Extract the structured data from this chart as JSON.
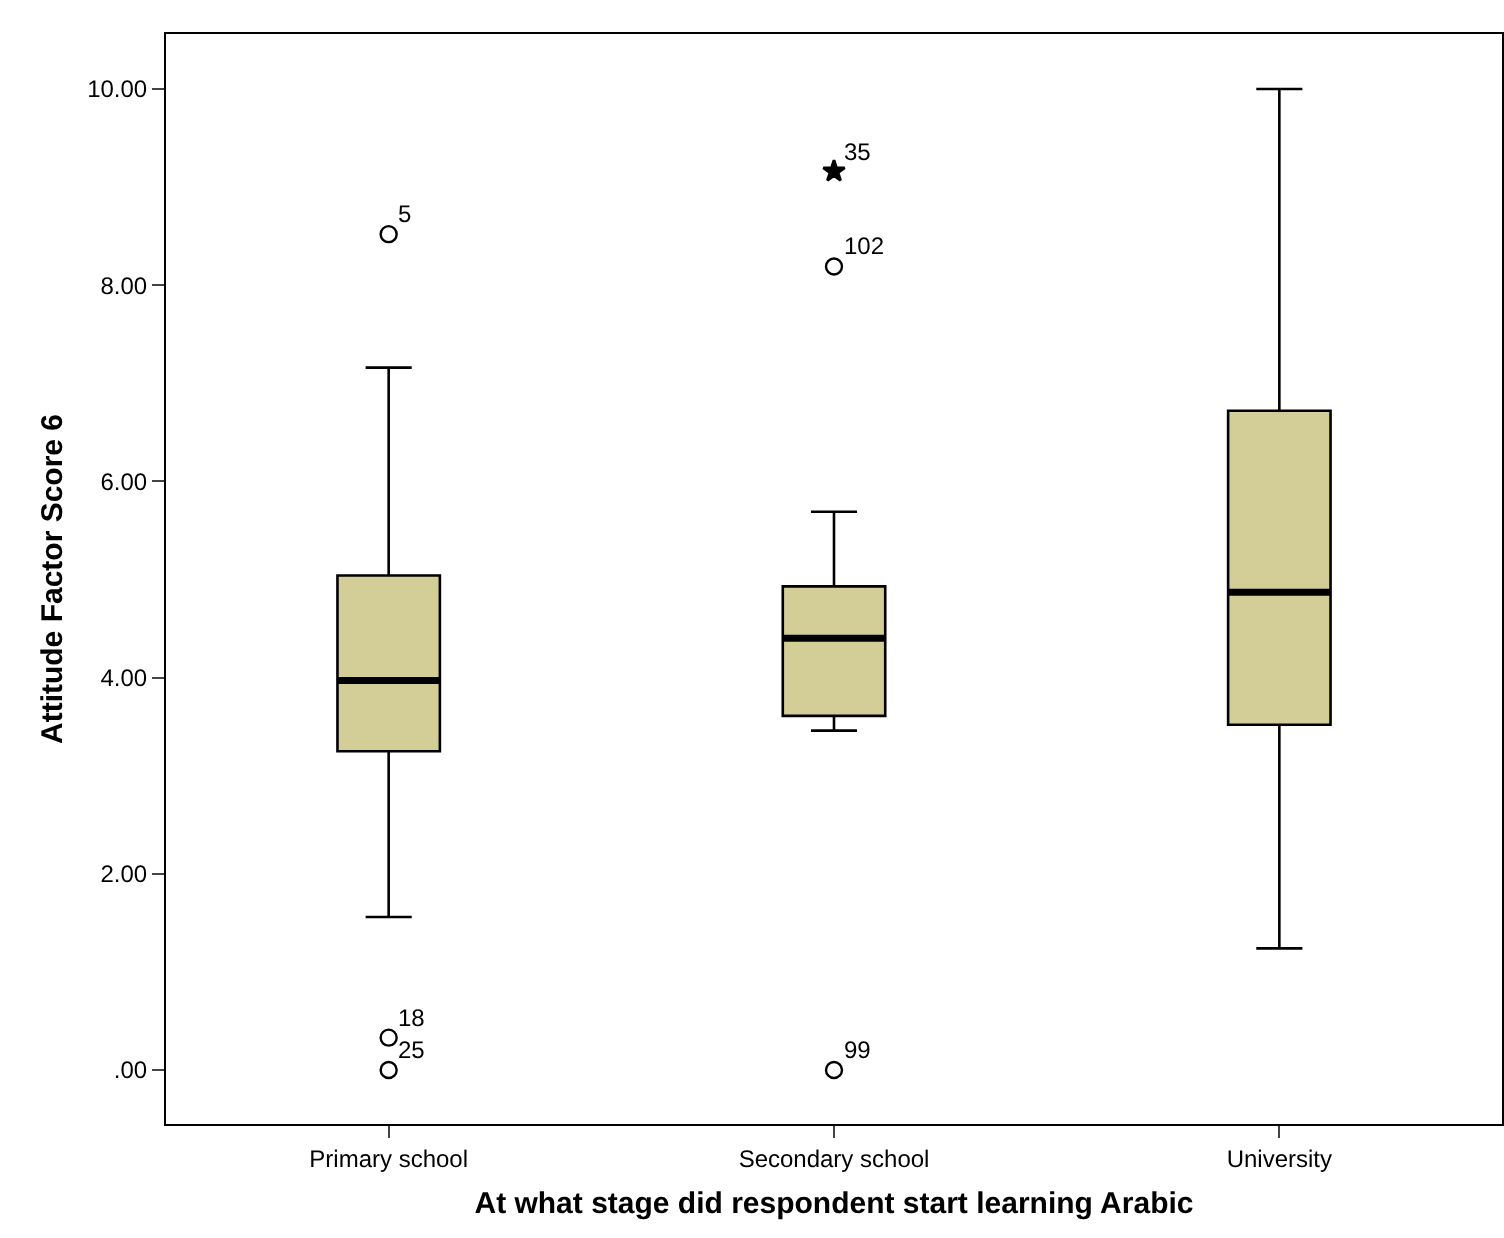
{
  "chart_data": {
    "type": "box",
    "xlabel": "At what stage did respondent start learning Arabic",
    "ylabel": "Attitude Factor Score 6",
    "categories": [
      "Primary school",
      "Secondary school",
      "University"
    ],
    "color": "#d3cd98",
    "boxes": [
      {
        "low": 1.56,
        "q1": 3.25,
        "median": 3.97,
        "q3": 5.04,
        "high": 7.16,
        "outliers": [
          8.52,
          0.33,
          0
        ]
      },
      {
        "low": 3.46,
        "q1": 3.61,
        "median": 4.4,
        "q3": 4.93,
        "high": 5.69,
        "outliers": [
          8.19,
          0
        ]
      },
      {
        "low": 1.24,
        "q1": 3.52,
        "median": 4.87,
        "q3": 6.72,
        "high": 10.0
      }
    ],
    "series": [
      {
        "type": "scatter",
        "marker": "star",
        "color": "#000000",
        "x": [
          "Secondary school"
        ],
        "values": [
          9.16
        ]
      }
    ],
    "annotations": [
      "5",
      "18",
      "25",
      "102",
      "99",
      "35"
    ],
    "ylim": [
      -0.55,
      10.56
    ],
    "yticks": [
      {
        "value": 0,
        "label": ".00"
      },
      {
        "value": 2,
        "label": "2.00"
      },
      {
        "value": 4,
        "label": "4.00"
      },
      {
        "value": 6,
        "label": "6.00"
      },
      {
        "value": 8,
        "label": "8.00"
      },
      {
        "value": 10,
        "label": "10.00"
      }
    ],
    "marker": "circle"
  }
}
